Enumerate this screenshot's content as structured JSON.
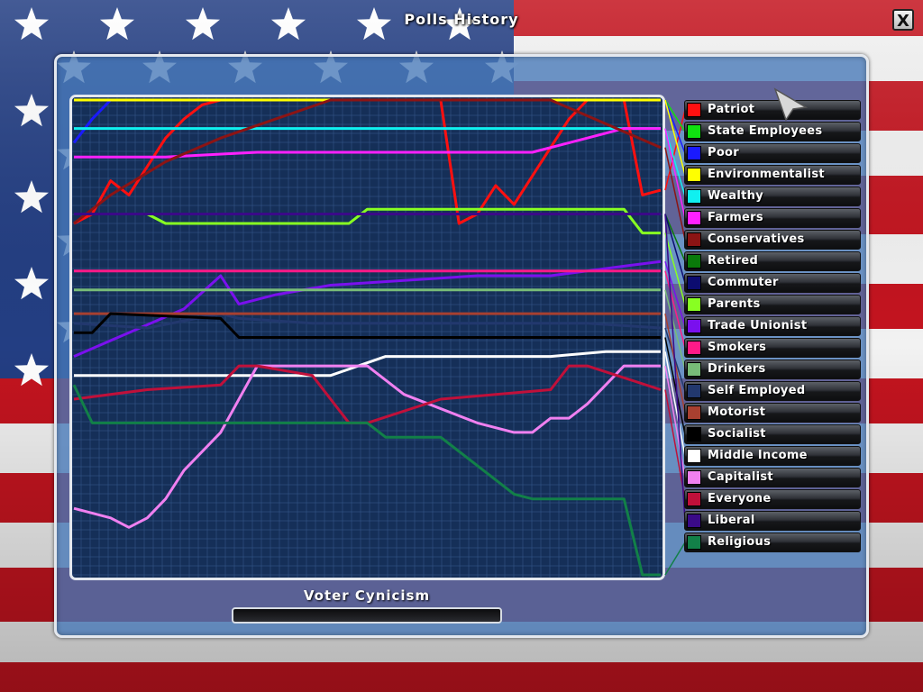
{
  "window": {
    "title": "Polls History",
    "close_label": "X"
  },
  "footer": {
    "cynicism_label": "Voter Cynicism",
    "cynicism_value": 0
  },
  "legend": [
    {
      "name": "Patriot",
      "color": "#ff1010"
    },
    {
      "name": "State Employees",
      "color": "#10e010"
    },
    {
      "name": "Poor",
      "color": "#1a1aff"
    },
    {
      "name": "Environmentalist",
      "color": "#ffff00"
    },
    {
      "name": "Wealthy",
      "color": "#10f0f0"
    },
    {
      "name": "Farmers",
      "color": "#ff20ff"
    },
    {
      "name": "Conservatives",
      "color": "#8c1414"
    },
    {
      "name": "Retired",
      "color": "#0a7a0a"
    },
    {
      "name": "Commuter",
      "color": "#0c0c70"
    },
    {
      "name": "Parents",
      "color": "#88ff22"
    },
    {
      "name": "Trade Unionist",
      "color": "#7a10ee"
    },
    {
      "name": "Smokers",
      "color": "#ff1a88"
    },
    {
      "name": "Drinkers",
      "color": "#78bc78"
    },
    {
      "name": "Self Employed",
      "color": "#22386e"
    },
    {
      "name": "Motorist",
      "color": "#a84030"
    },
    {
      "name": "Socialist",
      "color": "#000000"
    },
    {
      "name": "Middle Income",
      "color": "#ffffff"
    },
    {
      "name": "Capitalist",
      "color": "#f080f0"
    },
    {
      "name": "Everyone",
      "color": "#c0103a"
    },
    {
      "name": "Liberal",
      "color": "#3a0a88"
    },
    {
      "name": "Religious",
      "color": "#128048"
    }
  ],
  "chart_data": {
    "type": "line",
    "title": "Polls History",
    "xlim": [
      0,
      32
    ],
    "ylim": [
      0,
      100
    ],
    "grid": true,
    "legend_position": "right",
    "series": [
      {
        "name": "Patriot",
        "x": [
          0,
          1,
          2,
          3,
          4,
          5,
          6,
          7,
          8,
          9,
          10,
          11,
          12,
          13,
          14,
          15,
          16,
          17,
          18,
          19,
          20,
          21,
          22,
          23,
          24,
          25,
          26,
          27,
          28,
          29,
          30,
          31,
          32
        ],
        "y": [
          74,
          76,
          83,
          80,
          86,
          92,
          96,
          99,
          100,
          100,
          100,
          100,
          100,
          100,
          100,
          100,
          100,
          100,
          100,
          100,
          100,
          74,
          76,
          82,
          78,
          84,
          90,
          96,
          100,
          100,
          100,
          80,
          81
        ]
      },
      {
        "name": "State Employees",
        "x": [
          0,
          32
        ],
        "y": [
          100,
          100
        ]
      },
      {
        "name": "Poor",
        "x": [
          0,
          1,
          2
        ],
        "y": [
          91,
          96,
          100
        ]
      },
      {
        "name": "Environmentalist",
        "x": [
          0,
          32
        ],
        "y": [
          100,
          100
        ]
      },
      {
        "name": "Wealthy",
        "x": [
          0,
          32
        ],
        "y": [
          94,
          94
        ]
      },
      {
        "name": "Farmers",
        "x": [
          0,
          5,
          10,
          15,
          20,
          25,
          28,
          30,
          32
        ],
        "y": [
          88,
          88,
          89,
          89,
          89,
          89,
          92,
          94,
          94
        ]
      },
      {
        "name": "Conservatives",
        "x": [
          0,
          2,
          5,
          8,
          11,
          14,
          17,
          20,
          23,
          26,
          29,
          32
        ],
        "y": [
          74,
          80,
          87,
          92,
          96,
          100,
          100,
          100,
          100,
          100,
          95,
          90
        ]
      },
      {
        "name": "Retired",
        "x": [
          0,
          32
        ],
        "y": [
          76,
          76
        ]
      },
      {
        "name": "Commuter",
        "x": [
          0,
          32
        ],
        "y": [
          76,
          76
        ]
      },
      {
        "name": "Parents",
        "x": [
          0,
          4,
          5,
          15,
          16,
          30,
          31,
          32
        ],
        "y": [
          76,
          76,
          74,
          74,
          77,
          77,
          72,
          72
        ]
      },
      {
        "name": "Trade Unionist",
        "x": [
          0,
          3,
          6,
          8,
          9,
          11,
          14,
          18,
          22,
          26,
          30,
          32
        ],
        "y": [
          46,
          51,
          56,
          63,
          57,
          59,
          61,
          62,
          63,
          63,
          65,
          66
        ]
      },
      {
        "name": "Smokers",
        "x": [
          0,
          32
        ],
        "y": [
          64,
          64
        ]
      },
      {
        "name": "Drinkers",
        "x": [
          0,
          32
        ],
        "y": [
          60,
          60
        ]
      },
      {
        "name": "Self Employed",
        "x": [
          0,
          4,
          8,
          9,
          13,
          17,
          21,
          25,
          28,
          32
        ],
        "y": [
          53,
          52,
          55,
          54,
          53,
          53,
          53,
          53,
          53,
          52
        ]
      },
      {
        "name": "Motorist",
        "x": [
          0,
          32
        ],
        "y": [
          55,
          55
        ]
      },
      {
        "name": "Socialist",
        "x": [
          0,
          1,
          2,
          8,
          9,
          13,
          18,
          24,
          28,
          32
        ],
        "y": [
          51,
          51,
          55,
          54,
          50,
          50,
          50,
          50,
          50,
          50
        ]
      },
      {
        "name": "Middle Income",
        "x": [
          0,
          10,
          14,
          17,
          22,
          26,
          29,
          32
        ],
        "y": [
          42,
          42,
          42,
          46,
          46,
          46,
          47,
          47
        ]
      },
      {
        "name": "Capitalist",
        "x": [
          0,
          2,
          3,
          4,
          5,
          6,
          8,
          10,
          14,
          16,
          18,
          22,
          24,
          25,
          26,
          27,
          28,
          29,
          30,
          31,
          32
        ],
        "y": [
          14,
          12,
          10,
          12,
          16,
          22,
          30,
          44,
          44,
          44,
          38,
          32,
          30,
          30,
          33,
          33,
          36,
          40,
          44,
          44,
          44
        ]
      },
      {
        "name": "Everyone",
        "x": [
          0,
          4,
          8,
          9,
          10,
          13,
          15,
          16,
          20,
          26,
          27,
          28,
          32
        ],
        "y": [
          37,
          39,
          40,
          44,
          44,
          42,
          32,
          32,
          37,
          39,
          44,
          44,
          39
        ]
      },
      {
        "name": "Liberal",
        "x": [
          0,
          32
        ],
        "y": [
          76,
          76
        ]
      },
      {
        "name": "Religious",
        "x": [
          0,
          1,
          6,
          10,
          16,
          17,
          20,
          24,
          25,
          30,
          31,
          32
        ],
        "y": [
          40,
          32,
          32,
          32,
          32,
          29,
          29,
          17,
          16,
          16,
          0,
          0
        ]
      }
    ]
  }
}
